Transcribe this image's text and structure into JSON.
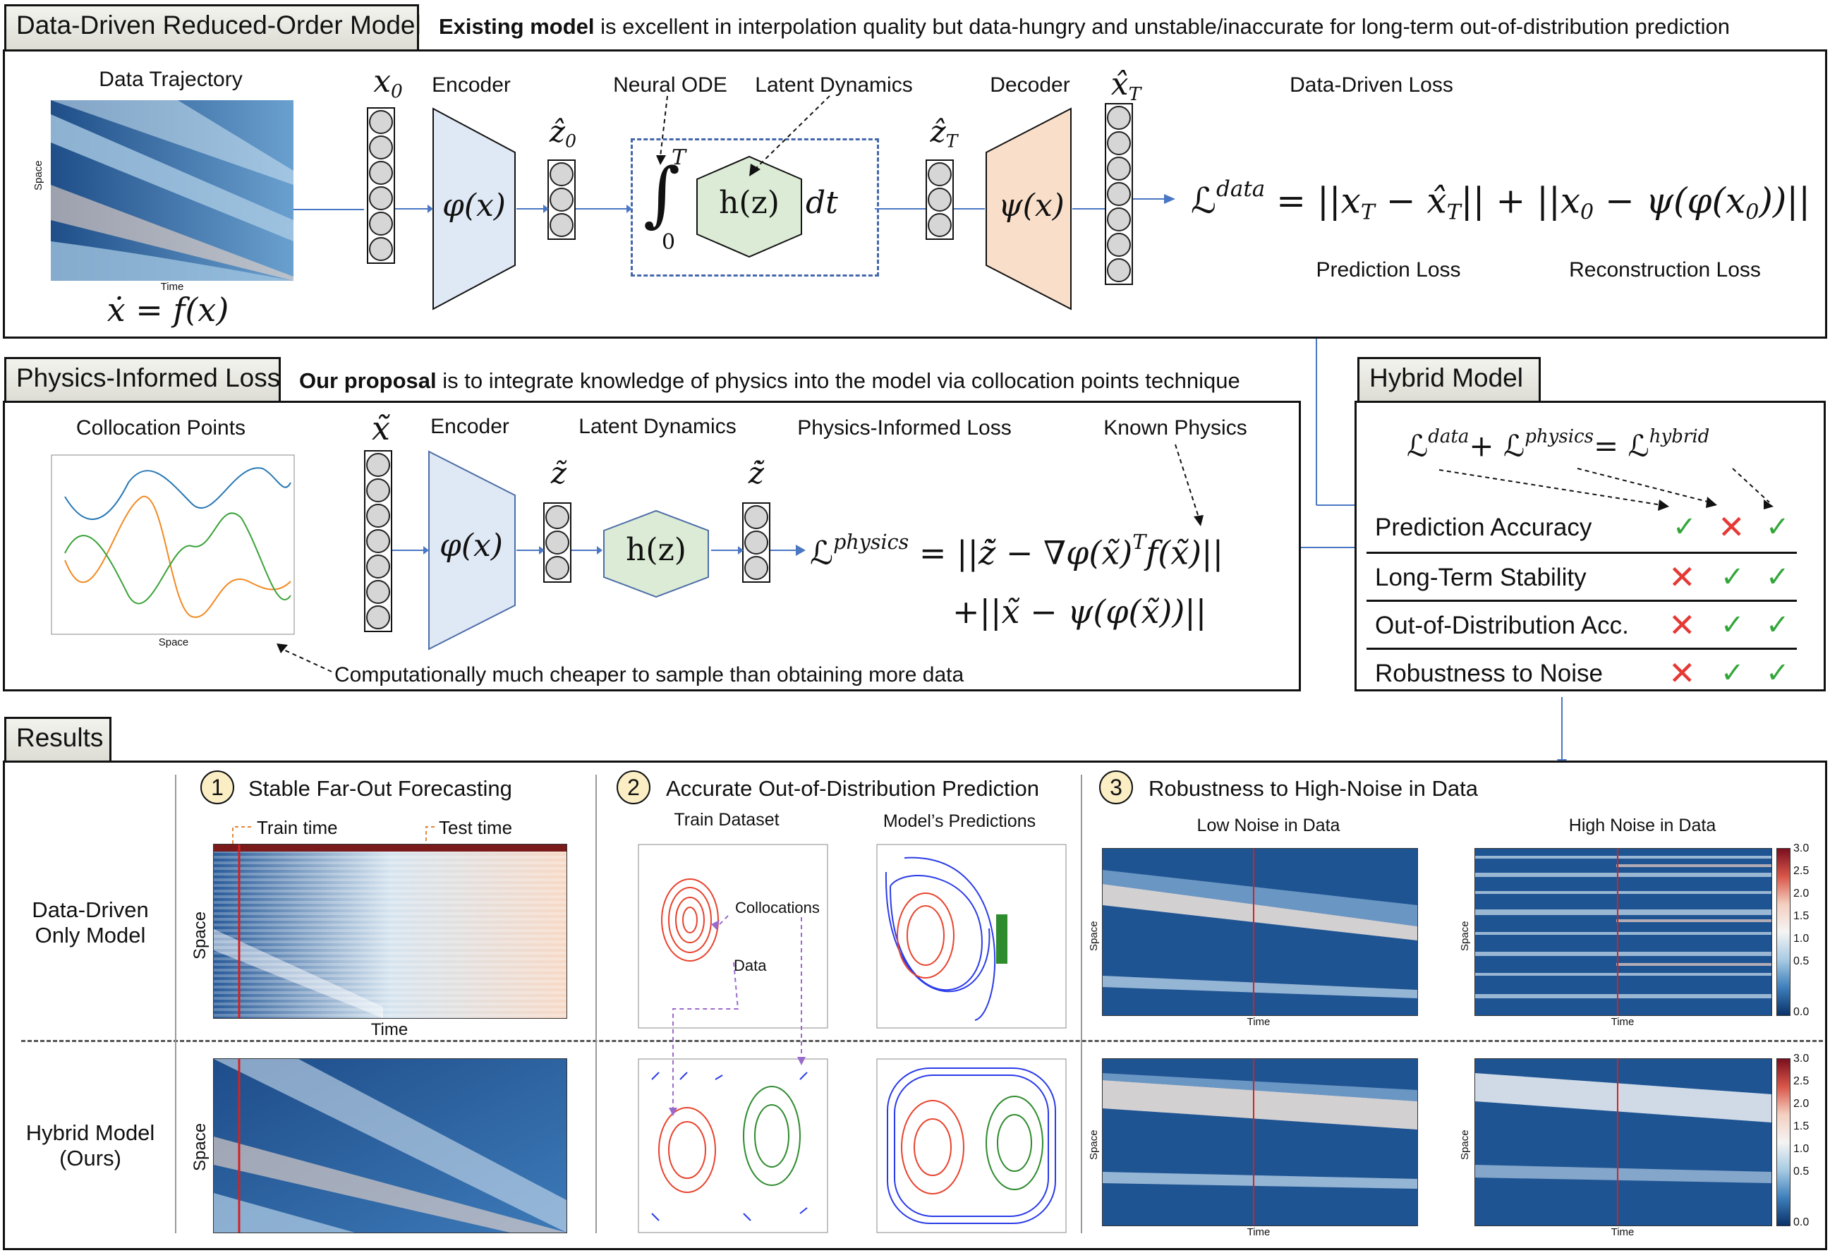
{
  "top": {
    "tab_title": "Data-Driven Reduced-Order Model",
    "caption_bold": "Existing model",
    "caption_rest": " is excellent in interpolation quality but data-hungry and unstable/inaccurate for long-term out-of-distribution prediction",
    "data_trajectory": "Data Trajectory",
    "axis_space": "Space",
    "axis_time": "Time",
    "ode_eq": "ẋ = f(x)",
    "x0": "x",
    "x0_sub": "0",
    "encoder": "Encoder",
    "encoder_fn": "φ(x)",
    "z0": "ẑ",
    "z0_sub": "0",
    "neural_ode": "Neural ODE",
    "latent_dynamics": "Latent Dynamics",
    "hz": "h(z)",
    "dt": "dt",
    "int_upper": "T",
    "int_lower": "0",
    "zT": "ẑ",
    "zT_sub": "T",
    "decoder": "Decoder",
    "decoder_fn": "ψ(x)",
    "xT": "x̂",
    "xT_sub": "T",
    "loss_title": "Data-Driven Loss",
    "loss_L": "ℒ",
    "loss_L_sup": "data",
    "loss_rhs_1": " = ||x",
    "loss_rhs_1_sub": "T",
    "loss_rhs_2": " − x̂",
    "loss_rhs_2_sub": "T",
    "loss_rhs_3": "|| + ||x",
    "loss_rhs_3_sub": "0",
    "loss_rhs_4": " − ψ(φ(x",
    "loss_rhs_4_sub": "0",
    "loss_rhs_5": "))||",
    "prediction_loss": "Prediction Loss",
    "reconstruction_loss": "Reconstruction Loss"
  },
  "physics": {
    "tab_title": "Physics-Informed Loss",
    "caption_bold": "Our proposal",
    "caption_rest": " is to integrate knowledge of physics into the model via collocation points technique",
    "collocation_points": "Collocation Points",
    "axis_space": "Space",
    "x_tilde": "x̃",
    "encoder": "Encoder",
    "encoder_fn": "φ(x)",
    "z_tilde": "z̃",
    "latent_dynamics": "Latent Dynamics",
    "hz": "h(z)",
    "zdot_tilde": "z̃̇",
    "loss_title": "Physics-Informed Loss",
    "known_physics": "Known Physics",
    "loss_L": "ℒ",
    "loss_L_sup": "physics",
    "line1": " = ||z̃̇ − ∇φ(x̃)",
    "line1_sup": "T",
    "line1_end": "f(x̃)||",
    "line2": "+||x̃ − ψ(φ(x̃))||",
    "note": "Computationally much cheaper to sample than obtaining more data"
  },
  "hybrid": {
    "tab_title": "Hybrid Model",
    "eq_a": "ℒ",
    "eq_a_sup": "data",
    "eq_b": "+ ℒ",
    "eq_b_sup": "physics",
    "eq_c": "= ℒ",
    "eq_c_sup": "hybrid",
    "rows": [
      {
        "label": "Prediction Accuracy",
        "marks": [
          "check",
          "cross",
          "check"
        ]
      },
      {
        "label": "Long-Term Stability",
        "marks": [
          "cross",
          "check",
          "check"
        ]
      },
      {
        "label": "Out-of-Distribution Acc.",
        "marks": [
          "cross",
          "check",
          "check"
        ]
      },
      {
        "label": "Robustness to Noise",
        "marks": [
          "cross",
          "check",
          "check"
        ]
      }
    ],
    "check_glyph": "✓",
    "cross_glyph": "✕"
  },
  "results": {
    "tab_title": "Results",
    "row1_line1": "Data-Driven",
    "row1_line2": "Only Model",
    "row2_line1": "Hybrid Model",
    "row2_line2": "(Ours)",
    "s1_num": "1",
    "s1_title": "Stable Far-Out Forecasting",
    "train_time": "Train time",
    "test_time": "Test time",
    "s1_space": "Space",
    "s1_time": "Time",
    "s2_num": "2",
    "s2_title": "Accurate Out-of-Distribution Prediction",
    "train_dataset": "Train Dataset",
    "model_predictions": "Model’s Predictions",
    "collocations": "Collocations",
    "data_lbl": "Data",
    "s3_num": "3",
    "s3_title": "Robustness to High-Noise in Data",
    "low_noise": "Low Noise in Data",
    "high_noise": "High Noise in Data",
    "space": "Space",
    "time": "Time",
    "colorbar_ticks": [
      "3.0",
      "2.5",
      "2.0",
      "1.5",
      "1.0",
      "0.5",
      "0.0"
    ]
  }
}
